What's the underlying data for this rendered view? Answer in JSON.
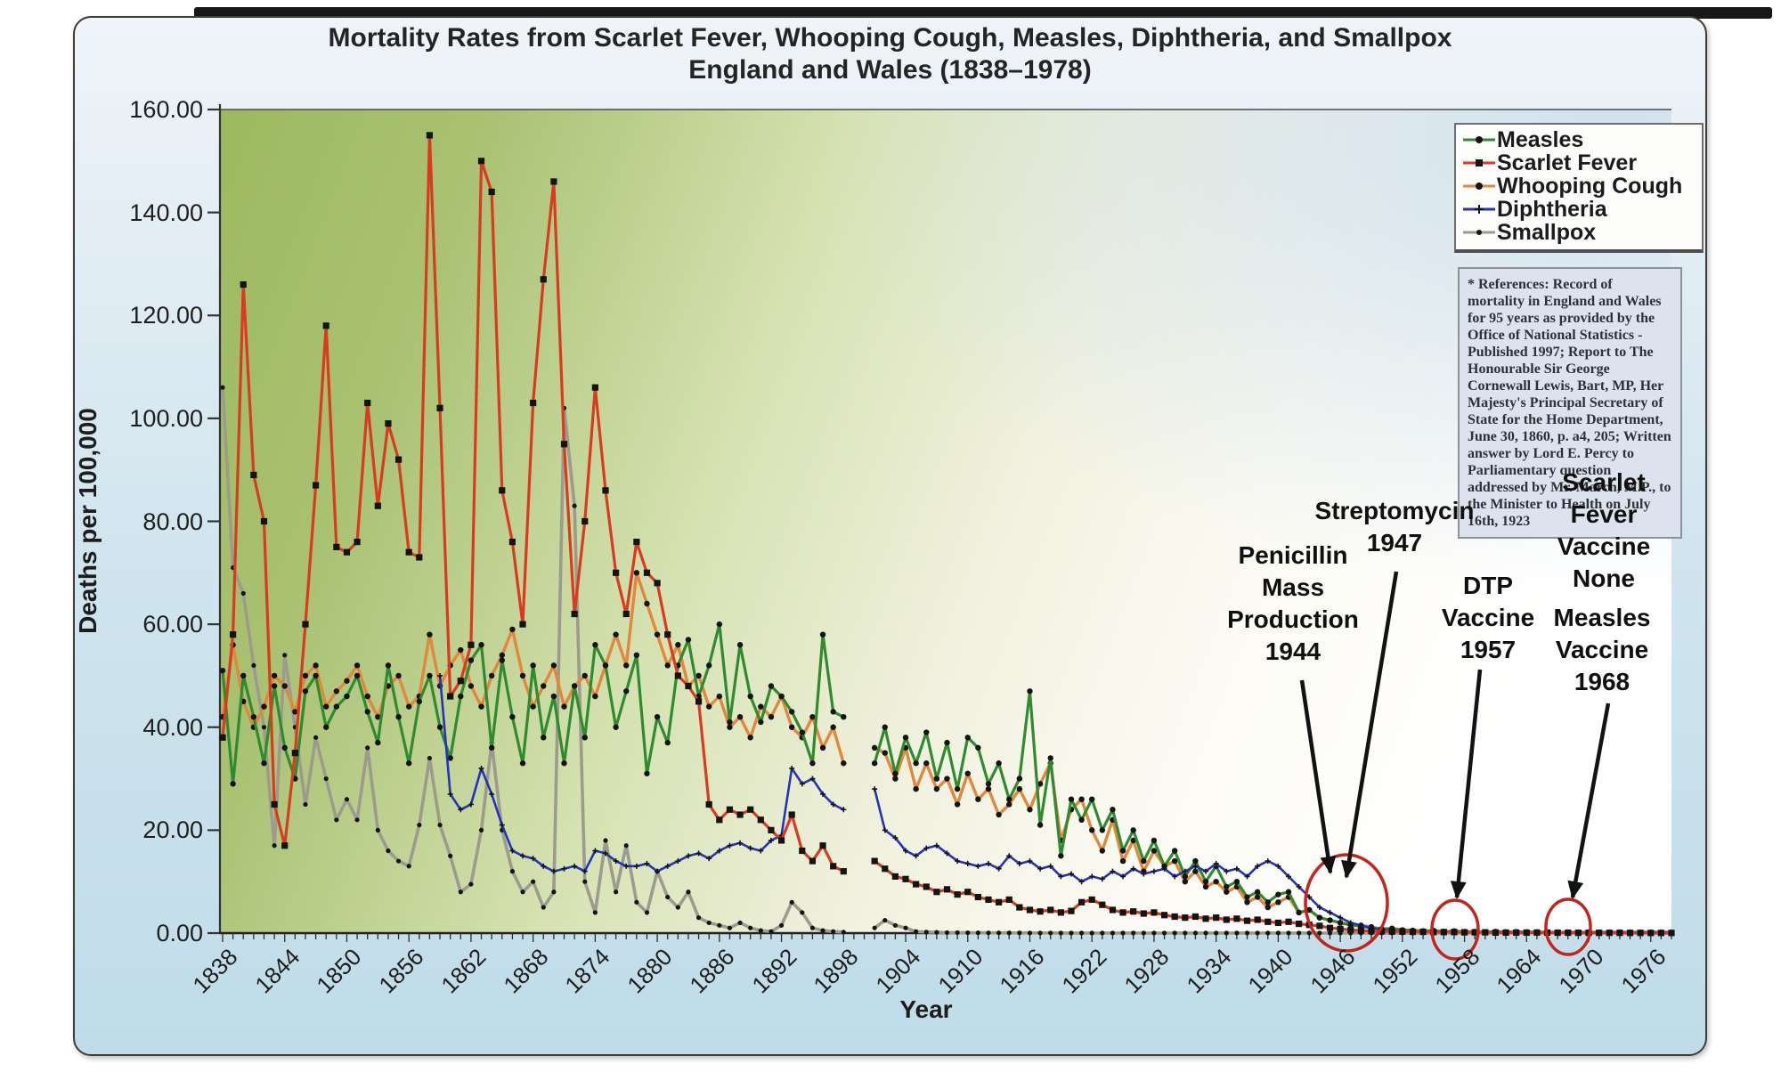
{
  "page": {
    "title_line1": "Mortality Rates from Scarlet Fever, Whooping Cough, Measles, Diphtheria, and Smallpox",
    "title_line2": "England and Wales (1838–1978)"
  },
  "axes": {
    "y_label": "Deaths per 100,000",
    "x_label": "Year",
    "y_ticks": [
      {
        "value": 160,
        "label": "160.00"
      },
      {
        "value": 140,
        "label": "140.00"
      },
      {
        "value": 120,
        "label": "120.00"
      },
      {
        "value": 100,
        "label": "100.00"
      },
      {
        "value": 80,
        "label": "80.00"
      },
      {
        "value": 60,
        "label": "60.00"
      },
      {
        "value": 40,
        "label": "40.00"
      },
      {
        "value": 20,
        "label": "20.00"
      },
      {
        "value": 0,
        "label": "0.00"
      }
    ],
    "x_tick_years": [
      1838,
      1844,
      1850,
      1856,
      1862,
      1868,
      1874,
      1880,
      1886,
      1892,
      1898,
      1904,
      1910,
      1916,
      1922,
      1928,
      1934,
      1940,
      1946,
      1952,
      1958,
      1964,
      1970,
      1976
    ]
  },
  "legend": {
    "items": [
      {
        "label": "Measles",
        "color": "#2f8b2f",
        "marker": "circle"
      },
      {
        "label": "Scarlet Fever",
        "color": "#d93a20",
        "marker": "square"
      },
      {
        "label": "Whooping Cough",
        "color": "#e2873b",
        "marker": "circle"
      },
      {
        "label": "Diphtheria",
        "color": "#2433bb",
        "marker": "plus"
      },
      {
        "label": "Smallpox",
        "color": "#9d9b8d",
        "marker": "dot"
      }
    ]
  },
  "references": {
    "text": "* References: Record of mortality in England and Wales for 95 years as provided by the Office of National Statistics - Published 1997; Report to The Honourable Sir George Cornewall Lewis, Bart, MP, Her Majesty's Principal Secretary of State for the Home Department, June 30, 1860, p. a4, 205; Written answer by Lord E. Percy to Parliamentary question addressed by Mr. March, M.P., to the Minister to Health on July 16th, 1923"
  },
  "annotations": [
    {
      "id": "penicillin",
      "lines": [
        "Penicillin",
        "Mass",
        "Production",
        "1944"
      ]
    },
    {
      "id": "streptomycin",
      "lines": [
        "Streptomycin",
        "1947"
      ]
    },
    {
      "id": "scarletnone",
      "lines": [
        "Scarlet",
        "Fever",
        "Vaccine",
        "None"
      ]
    },
    {
      "id": "dtp",
      "lines": [
        "DTP",
        "Vaccine",
        "1957"
      ]
    },
    {
      "id": "measlesvax",
      "lines": [
        "Measles",
        "Vaccine",
        "1968"
      ]
    }
  ],
  "decorations": {
    "circle_color": "#c2251a",
    "arrow_color": "#121212"
  },
  "chart_data": {
    "type": "line",
    "title": "Mortality Rates from Scarlet Fever, Whooping Cough, Measles, Diphtheria, and Smallpox — England and Wales (1838–1978)",
    "xlabel": "Year",
    "ylabel": "Deaths per 100,000",
    "x_start": 1838,
    "x_step": 1,
    "x_end": 1978,
    "ylim": [
      0,
      160
    ],
    "grid": "none",
    "legend_position": "top-right",
    "data_gap_years": [
      1899,
      1900
    ],
    "series": [
      {
        "name": "Measles",
        "color": "#2f8b2f",
        "marker": "circle",
        "values": [
          51,
          29,
          50,
          42,
          33,
          48,
          36,
          30,
          47,
          50,
          40,
          44,
          46,
          50,
          43,
          37,
          52,
          42,
          33,
          45,
          50,
          40,
          34,
          46,
          53,
          56,
          36,
          53,
          42,
          33,
          52,
          38,
          46,
          33,
          48,
          38,
          56,
          52,
          40,
          47,
          54,
          31,
          42,
          37,
          52,
          57,
          46,
          52,
          60,
          41,
          56,
          46,
          41,
          48,
          46,
          43,
          39,
          33,
          58,
          43,
          42,
          null,
          null,
          33,
          40,
          31,
          38,
          33,
          39,
          30,
          37,
          28,
          38,
          36,
          29,
          33,
          26,
          30,
          47,
          21,
          34,
          15,
          26,
          22,
          26,
          20,
          24,
          16,
          20,
          14,
          18,
          13,
          16,
          11,
          14,
          10,
          13,
          9,
          10,
          7,
          8,
          6,
          7.5,
          8,
          4,
          4.5,
          3,
          2.5,
          2,
          1.6,
          1.3,
          1,
          0.8,
          0.9,
          0.6,
          0.5,
          0.4,
          0.5,
          0.3,
          0.4,
          0.3,
          0.3,
          0.2,
          0.3,
          0.2,
          0.25,
          0.2,
          0.2,
          0.15,
          0.1,
          0.1,
          0.08,
          0.06,
          0.05,
          0.05,
          0.04,
          0.03,
          0.03,
          0.02,
          0.02,
          0.02
        ]
      },
      {
        "name": "Scarlet Fever",
        "color": "#d93a20",
        "marker": "square",
        "values": [
          38,
          58,
          126,
          89,
          80,
          25,
          17,
          35,
          60,
          87,
          118,
          75,
          74,
          76,
          103,
          83,
          99,
          92,
          74,
          73,
          155,
          102,
          46,
          49,
          56,
          150,
          144,
          86,
          76,
          60,
          103,
          127,
          146,
          95,
          62,
          80,
          106,
          86,
          70,
          62,
          76,
          70,
          68,
          58,
          50,
          48,
          45,
          25,
          22,
          24,
          23,
          24,
          22,
          20,
          18,
          23,
          16,
          14,
          17,
          13,
          12,
          null,
          null,
          14,
          12.5,
          11,
          10.5,
          9.5,
          9,
          8,
          8.5,
          7.5,
          8,
          7,
          6.5,
          6,
          6.5,
          5,
          4.5,
          4.2,
          4.5,
          4,
          4.3,
          6,
          6.5,
          5.5,
          4.5,
          4,
          4.2,
          3.8,
          4,
          3.5,
          3.2,
          3,
          3.2,
          2.8,
          3,
          2.6,
          2.8,
          2.4,
          2.6,
          2.2,
          2,
          2.2,
          1.8,
          1.6,
          1.4,
          1,
          0.8,
          0.6,
          0.5,
          0.4,
          0.35,
          0.3,
          0.3,
          0.25,
          0.25,
          0.2,
          0.2,
          0.2,
          0.15,
          0.15,
          0.15,
          0.1,
          0.1,
          0.1,
          0.1,
          0.1,
          0.1,
          0.08,
          0.08,
          0.06,
          0.06,
          0.05,
          0.05,
          0.05,
          0.04,
          0.04,
          0.03,
          0.03,
          0.03
        ]
      },
      {
        "name": "Whooping Cough",
        "color": "#e2873b",
        "marker": "circle",
        "values": [
          42,
          56,
          45,
          40,
          44,
          50,
          48,
          43,
          50,
          52,
          44,
          47,
          49,
          52,
          46,
          42,
          48,
          50,
          44,
          46,
          58,
          48,
          52,
          55,
          48,
          44,
          50,
          54,
          59,
          50,
          44,
          48,
          52,
          44,
          48,
          50,
          46,
          52,
          58,
          52,
          70,
          64,
          58,
          52,
          56,
          48,
          50,
          44,
          46,
          40,
          42,
          38,
          44,
          42,
          46,
          40,
          38,
          42,
          36,
          40,
          33,
          null,
          null,
          36,
          35,
          30,
          36,
          28,
          33,
          28,
          30,
          25,
          31,
          26,
          28,
          23,
          25,
          28,
          24,
          29,
          33,
          18,
          24,
          26,
          20,
          16,
          22,
          14,
          18,
          12,
          16,
          13,
          14,
          10,
          12,
          9,
          10,
          8,
          9,
          6,
          7,
          5,
          6,
          7,
          4,
          4.5,
          3,
          2.5,
          2,
          1.6,
          1.5,
          1.2,
          0.8,
          0.9,
          0.6,
          0.5,
          0.4,
          0.4,
          0.3,
          0.25,
          0.2,
          0.2,
          0.15,
          0.15,
          0.1,
          0.1,
          0.1,
          0.08,
          0.08,
          0.06,
          0.06,
          0.05,
          0.05,
          0.04,
          0.04,
          0.03,
          0.03,
          0.03,
          0.02,
          0.02,
          0.02
        ]
      },
      {
        "name": "Diphtheria",
        "color": "#2433bb",
        "marker": "plus",
        "values": [
          null,
          null,
          null,
          null,
          null,
          null,
          null,
          null,
          null,
          null,
          null,
          null,
          null,
          null,
          null,
          null,
          null,
          null,
          null,
          null,
          null,
          50,
          27,
          24,
          25,
          32,
          27,
          21,
          16,
          15,
          14.5,
          13,
          12,
          12.5,
          13,
          12,
          16,
          15.5,
          14,
          13,
          13,
          13.5,
          12,
          13,
          14,
          15,
          15.5,
          14.5,
          16,
          17,
          17.5,
          16.5,
          16,
          18,
          19,
          32,
          29,
          30,
          27,
          25,
          24,
          null,
          null,
          28,
          20,
          18.5,
          16,
          15,
          16.5,
          17,
          15.5,
          14,
          13.5,
          13,
          13.5,
          12.5,
          15,
          13.5,
          14,
          12.5,
          13,
          11,
          11.5,
          10,
          11,
          10.5,
          12,
          11,
          12.5,
          11.5,
          12,
          12.5,
          11,
          12,
          13,
          12,
          13.5,
          12,
          12.5,
          11,
          13,
          14,
          13,
          11,
          9,
          7,
          5,
          4,
          3,
          2,
          1.5,
          1,
          0.7,
          0.5,
          0.35,
          0.3,
          0.3,
          0.25,
          0.25,
          0.2,
          0.2,
          0.2,
          0.2,
          0.2,
          0.2,
          0.2,
          0.2,
          0.2,
          0.2,
          0.2,
          0.2,
          0.2,
          0.2,
          0.2,
          0.2,
          0.2,
          0.2,
          0.2,
          0.2,
          0.2,
          0.2
        ]
      },
      {
        "name": "Smallpox",
        "color": "#9d9b8d",
        "marker": "dot",
        "values": [
          106,
          71,
          66,
          52,
          40,
          17,
          54,
          40,
          25,
          38,
          30,
          22,
          26,
          22,
          36,
          20,
          16,
          14,
          13,
          21,
          34,
          21,
          15,
          8,
          9.5,
          20,
          37,
          20,
          12,
          8,
          10,
          5,
          8,
          102,
          83,
          10,
          4,
          18,
          8,
          17,
          6,
          4,
          12,
          7,
          5,
          8,
          3,
          2,
          1.5,
          1,
          2,
          1,
          0.5,
          0.3,
          1.5,
          6,
          4,
          1,
          0.5,
          0.3,
          0.2,
          null,
          null,
          1,
          2.5,
          1.5,
          1,
          0.3,
          0.2,
          0.15,
          0.1,
          0.1,
          0.08,
          0.06,
          0.05,
          0.05,
          0.04,
          0.04,
          0.03,
          0.03,
          0.03,
          0.02,
          0.02,
          0.02,
          0.02,
          0.02,
          0.02,
          0.02,
          0.02,
          0.02,
          0.02,
          0.02,
          0.02,
          0.02,
          0.02,
          0.02,
          0.02,
          0.02,
          0.02,
          0.02,
          0.02,
          0.02,
          0.02,
          0.02,
          0.02,
          0.02,
          0.02,
          0.02,
          0.02,
          0.02,
          0.02,
          0.02,
          0.02,
          0.02,
          0.02,
          0.02,
          0.02,
          0.02,
          0.02,
          0.02,
          0.02,
          0.02,
          0.02,
          0.02,
          0.02,
          0.02,
          0.02,
          0.02,
          0.02,
          0.02,
          0.02,
          0.02,
          0.02,
          0.02,
          0.02,
          0.02,
          0.02,
          0.02,
          0.02,
          0.02,
          0.02
        ]
      }
    ],
    "event_circles_years": [
      1946,
      1958,
      1970
    ]
  }
}
